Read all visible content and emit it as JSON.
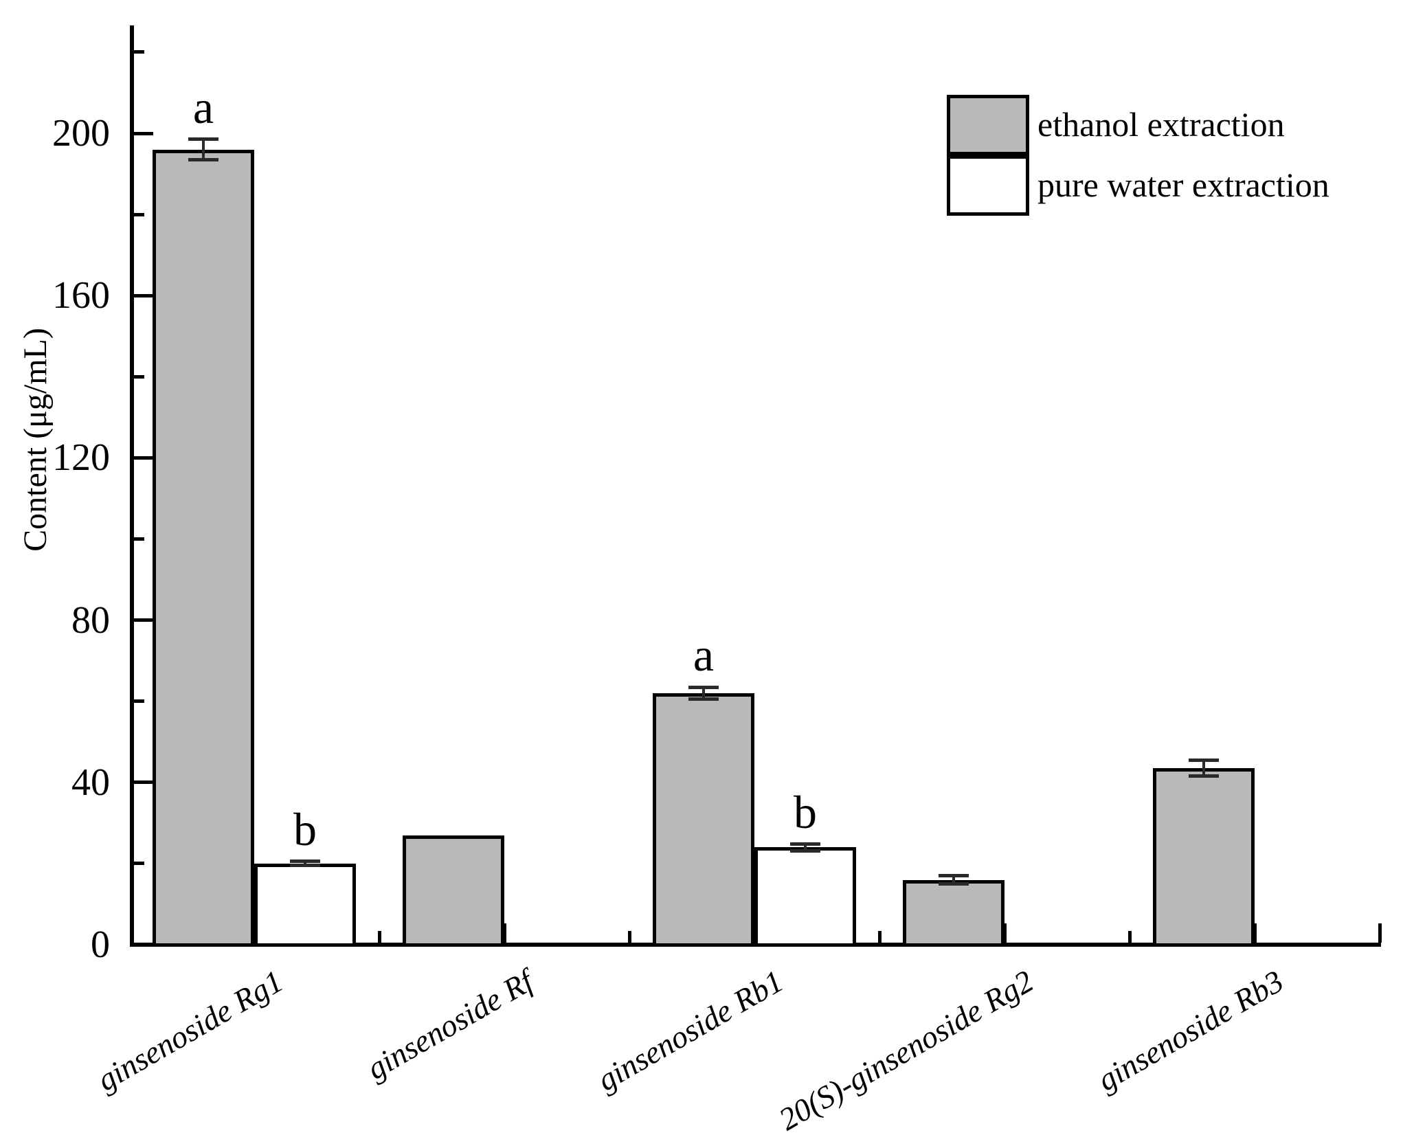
{
  "figure": {
    "background": "#ffffff",
    "ink_color": "#000000"
  },
  "chart_data": {
    "type": "bar",
    "title": "",
    "xlabel": "",
    "ylabel": "Content (μg/mL)",
    "ylim": [
      0,
      226
    ],
    "grid": false,
    "legend_position": "top-right",
    "yticks_major": [
      0,
      40,
      80,
      120,
      160,
      200
    ],
    "yticks_minor": [
      20,
      60,
      100,
      140,
      180,
      220
    ],
    "categories": [
      "ginsenoside Rg1",
      "ginsenoside Rf",
      "ginsenoside Rb1",
      "20(S)-ginsenoside Rg2",
      "ginsenoside Rb3"
    ],
    "series": [
      {
        "name": "ethanol extraction",
        "fill": "#b9b9b9",
        "values": [
          196,
          27,
          62,
          16,
          43.5
        ],
        "errors": [
          2.5,
          0,
          1.5,
          1,
          2
        ],
        "letters": [
          "a",
          "",
          "a",
          "",
          ""
        ]
      },
      {
        "name": "pure water extraction",
        "fill": "#ffffff",
        "values": [
          20,
          null,
          24,
          null,
          null
        ],
        "errors": [
          0.5,
          null,
          0.8,
          null,
          null
        ],
        "letters": [
          "b",
          "",
          "b",
          "",
          ""
        ]
      }
    ]
  },
  "legend": {
    "items": [
      {
        "label": "ethanol extraction",
        "fill": "#b9b9b9"
      },
      {
        "label": "pure water extraction",
        "fill": "#ffffff"
      }
    ]
  },
  "axes": {
    "y_title": "Content (μg/mL)"
  }
}
